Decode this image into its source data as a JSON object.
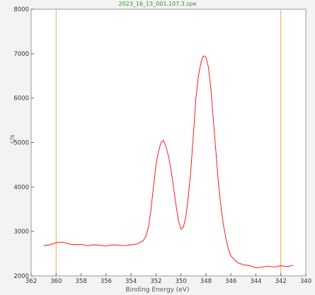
{
  "chart_data": {
    "type": "line",
    "title": "2023_16_13_001.107.3.spe",
    "xlabel": "Binding Energy (eV)",
    "ylabel": "c/s",
    "xlim": [
      362,
      340
    ],
    "ylim": [
      2000,
      8000
    ],
    "x_ticks": [
      362,
      360,
      358,
      356,
      354,
      352,
      350,
      348,
      346,
      344,
      342,
      340
    ],
    "y_ticks": [
      2000,
      3000,
      4000,
      5000,
      6000,
      7000,
      8000
    ],
    "grid": false,
    "legend": "none",
    "markers": [
      360.0,
      342.0
    ],
    "series": [
      {
        "color": "#ff0000",
        "x": [
          361.0,
          360.5,
          360.0,
          359.5,
          359.0,
          358.5,
          358.0,
          357.5,
          357.0,
          356.5,
          356.0,
          355.5,
          355.0,
          354.5,
          354.0,
          353.5,
          353.0,
          352.8,
          352.6,
          352.4,
          352.2,
          352.0,
          351.8,
          351.6,
          351.4,
          351.2,
          351.0,
          350.8,
          350.6,
          350.4,
          350.2,
          350.0,
          349.8,
          349.6,
          349.4,
          349.2,
          349.0,
          348.8,
          348.6,
          348.4,
          348.2,
          348.0,
          347.8,
          347.6,
          347.4,
          347.2,
          347.0,
          346.8,
          346.6,
          346.4,
          346.2,
          346.0,
          345.5,
          345.0,
          344.5,
          344.0,
          343.5,
          343.0,
          342.5,
          342.0,
          341.5,
          341.0
        ],
        "y": [
          2680,
          2700,
          2750,
          2760,
          2720,
          2700,
          2710,
          2680,
          2700,
          2690,
          2670,
          2700,
          2690,
          2680,
          2700,
          2720,
          2800,
          2900,
          3100,
          3500,
          4000,
          4500,
          4800,
          5000,
          5050,
          4900,
          4700,
          4400,
          4000,
          3600,
          3250,
          3050,
          3100,
          3350,
          3800,
          4400,
          5200,
          6000,
          6500,
          6800,
          6950,
          6920,
          6700,
          6200,
          5500,
          4800,
          4100,
          3550,
          3150,
          2850,
          2600,
          2450,
          2300,
          2250,
          2230,
          2180,
          2200,
          2220,
          2200,
          2230,
          2210,
          2240
        ]
      }
    ]
  }
}
